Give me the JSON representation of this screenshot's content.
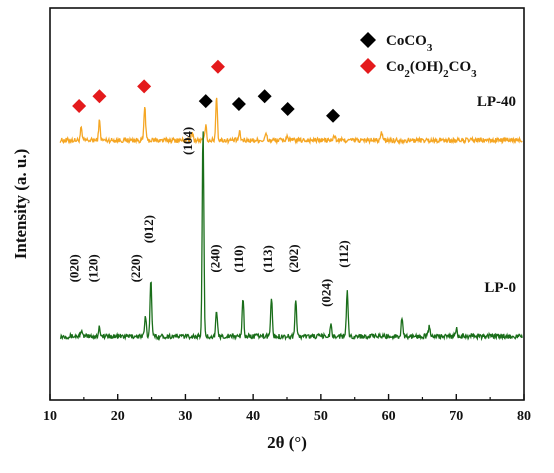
{
  "chart_data": {
    "type": "line",
    "xlabel": "2θ (°)",
    "ylabel": "Intensity (a. u.)",
    "xlim": [
      10,
      80
    ],
    "xticks": [
      10,
      20,
      30,
      40,
      50,
      60,
      70,
      80
    ],
    "yticks_shown": false,
    "grid": false,
    "legend_position": "top-right",
    "legend": [
      {
        "label_main": "CoCO",
        "label_sub": "3",
        "marker": "diamond",
        "color": "#000000"
      },
      {
        "label_parts": [
          [
            "Co",
            ""
          ],
          [
            "2",
            "sub"
          ],
          [
            "(OH)",
            ""
          ],
          [
            "2",
            "sub"
          ],
          [
            "CO",
            ""
          ],
          [
            "3",
            "sub"
          ]
        ],
        "marker": "diamond",
        "color": "#e41a1c"
      }
    ],
    "series": [
      {
        "name": "LP-40",
        "color": "#f5a623",
        "baseline": 2.65,
        "peaks": [
          {
            "x": 14.6,
            "h": 0.12
          },
          {
            "x": 17.3,
            "h": 0.2
          },
          {
            "x": 24.0,
            "h": 0.35
          },
          {
            "x": 31.0,
            "h": 0.08
          },
          {
            "x": 33.0,
            "h": 0.15
          },
          {
            "x": 34.6,
            "h": 0.45
          },
          {
            "x": 38.0,
            "h": 0.08
          },
          {
            "x": 41.9,
            "h": 0.07
          },
          {
            "x": 45.0,
            "h": 0.05
          },
          {
            "x": 52.0,
            "h": 0.05
          },
          {
            "x": 59.0,
            "h": 0.08
          }
        ],
        "markers": [
          {
            "x": 14.3,
            "y": 3.0,
            "kind": "Co2(OH)2CO3"
          },
          {
            "x": 17.3,
            "y": 3.1,
            "kind": "Co2(OH)2CO3"
          },
          {
            "x": 23.9,
            "y": 3.2,
            "kind": "Co2(OH)2CO3"
          },
          {
            "x": 33.0,
            "y": 3.05,
            "kind": "CoCO3"
          },
          {
            "x": 34.8,
            "y": 3.4,
            "kind": "Co2(OH)2CO3"
          },
          {
            "x": 37.9,
            "y": 3.02,
            "kind": "CoCO3"
          },
          {
            "x": 41.7,
            "y": 3.1,
            "kind": "CoCO3"
          },
          {
            "x": 45.1,
            "y": 2.97,
            "kind": "CoCO3"
          },
          {
            "x": 51.8,
            "y": 2.9,
            "kind": "CoCO3"
          }
        ]
      },
      {
        "name": "LP-0",
        "color": "#1a6e1a",
        "baseline": 0.65,
        "peaks": [
          {
            "x": 14.6,
            "h": 0.06
          },
          {
            "x": 17.3,
            "h": 0.1
          },
          {
            "x": 24.1,
            "h": 0.2
          },
          {
            "x": 24.9,
            "h": 0.6
          },
          {
            "x": 32.6,
            "h": 2.1
          },
          {
            "x": 34.6,
            "h": 0.25
          },
          {
            "x": 38.5,
            "h": 0.4
          },
          {
            "x": 42.7,
            "h": 0.4
          },
          {
            "x": 46.3,
            "h": 0.38
          },
          {
            "x": 51.5,
            "h": 0.12
          },
          {
            "x": 53.9,
            "h": 0.48
          },
          {
            "x": 62.0,
            "h": 0.2
          },
          {
            "x": 66.0,
            "h": 0.1
          },
          {
            "x": 70.0,
            "h": 0.08
          }
        ]
      }
    ],
    "annotations": [
      {
        "text": "(020)",
        "x": 14.2,
        "y": 1.2,
        "color": "#e41a1c"
      },
      {
        "text": "(120)",
        "x": 17.0,
        "y": 1.2,
        "color": "#e41a1c"
      },
      {
        "text": "(220)",
        "x": 23.3,
        "y": 1.2,
        "color": "#e41a1c"
      },
      {
        "text": "(012)",
        "x": 25.2,
        "y": 1.6,
        "color": "#000000"
      },
      {
        "text": "(104)",
        "x": 31.0,
        "y": 2.5,
        "color": "#000000"
      },
      {
        "text": "(240)",
        "x": 35.0,
        "y": 1.3,
        "color": "#e41a1c"
      },
      {
        "text": "(110)",
        "x": 38.5,
        "y": 1.3,
        "color": "#000000"
      },
      {
        "text": "(113)",
        "x": 42.8,
        "y": 1.3,
        "color": "#000000"
      },
      {
        "text": "(202)",
        "x": 46.6,
        "y": 1.3,
        "color": "#000000"
      },
      {
        "text": "(024)",
        "x": 51.4,
        "y": 0.95,
        "color": "#000000"
      },
      {
        "text": "(112)",
        "x": 54.0,
        "y": 1.35,
        "color": "#000000"
      }
    ]
  }
}
